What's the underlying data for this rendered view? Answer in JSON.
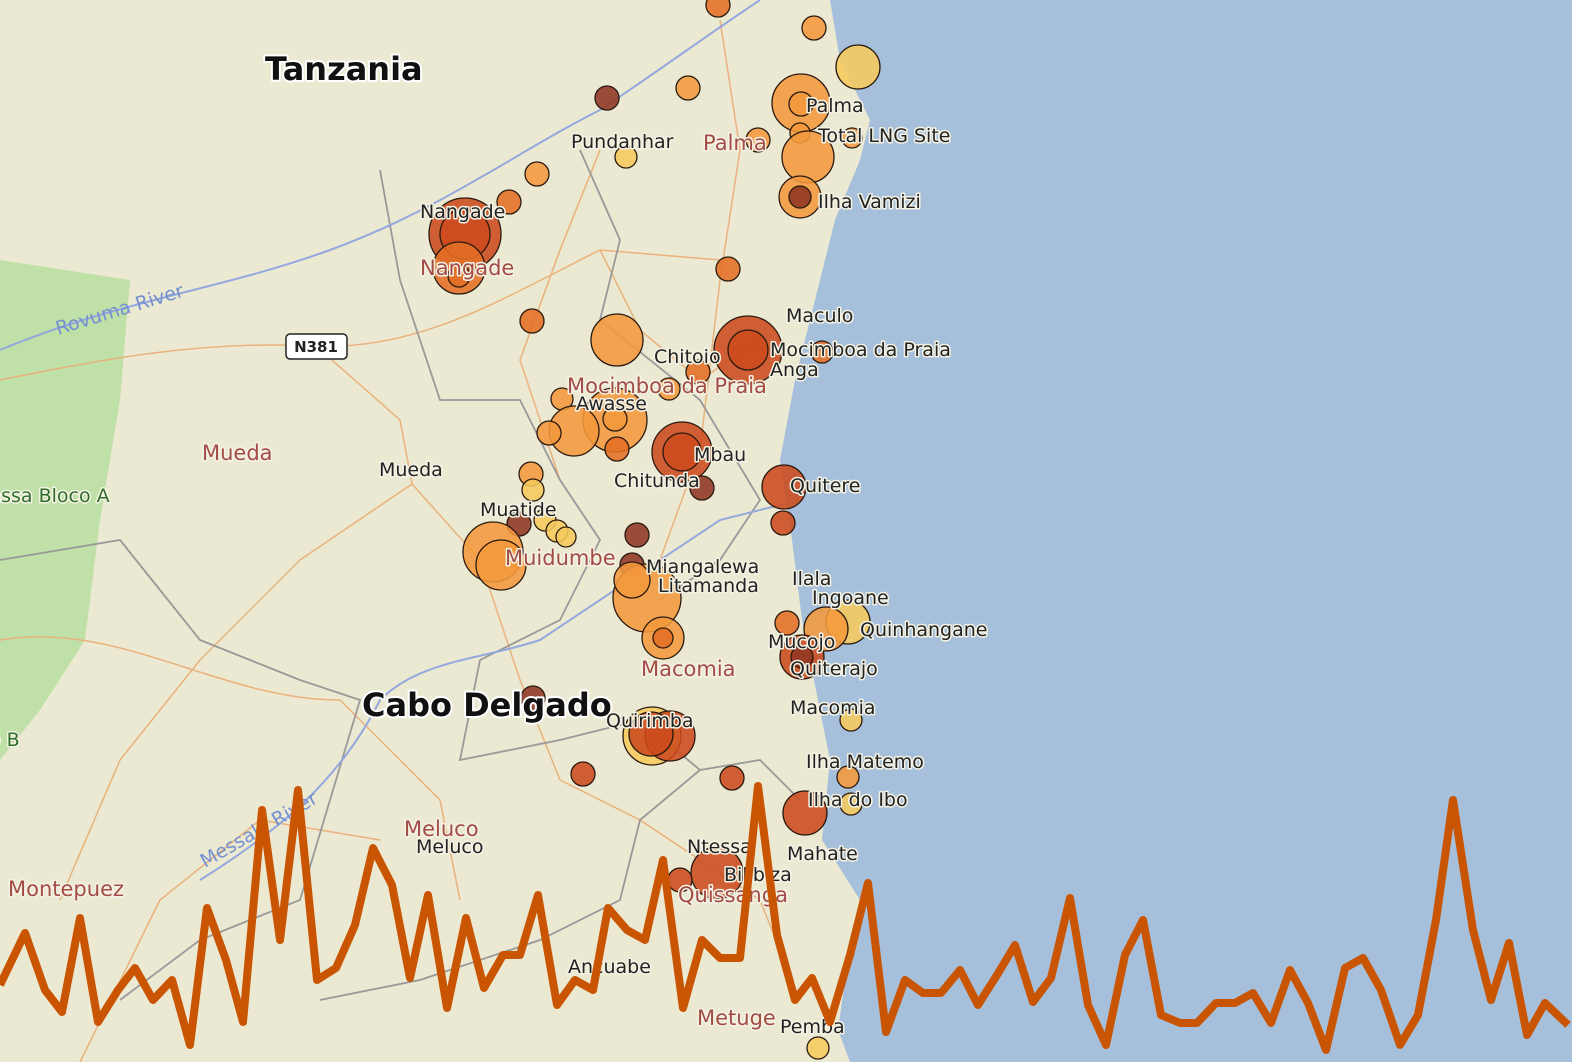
{
  "labels": {
    "country": "Tanzania",
    "province": "Cabo Delgado",
    "road": "N381",
    "rivers": [
      "Rovuma River",
      "Messalo River"
    ],
    "protected_areas": [
      "Niassa Bloco A",
      "Niassa Bloco B"
    ],
    "districts": [
      "Palma",
      "Nangade",
      "Mocimboa da Praia",
      "Mueda",
      "Muidumbe",
      "Macomia",
      "Meluco",
      "Montepuez",
      "Quissanga",
      "Metuge"
    ],
    "places": [
      "Palma",
      "Total LNG Site",
      "Pundanhar",
      "Ilha Vamizi",
      "Nangade",
      "Maculo",
      "Mocimboa da Praia",
      "Chitoio",
      "Anga",
      "Awasse",
      "Mbau",
      "Mueda",
      "Chitunda",
      "Quitere",
      "Muatide",
      "Miangalewa",
      "Litamanda",
      "Ilala",
      "Ingoane",
      "Quinhangane",
      "Mucojo",
      "Quiterajo",
      "Macomia",
      "Ilha Matemo",
      "Ilha do Ibo",
      "Quirimba",
      "Meluco",
      "Ntessa",
      "Mahate",
      "Bilibiza",
      "Ancuabe",
      "Pemba"
    ]
  }
}
